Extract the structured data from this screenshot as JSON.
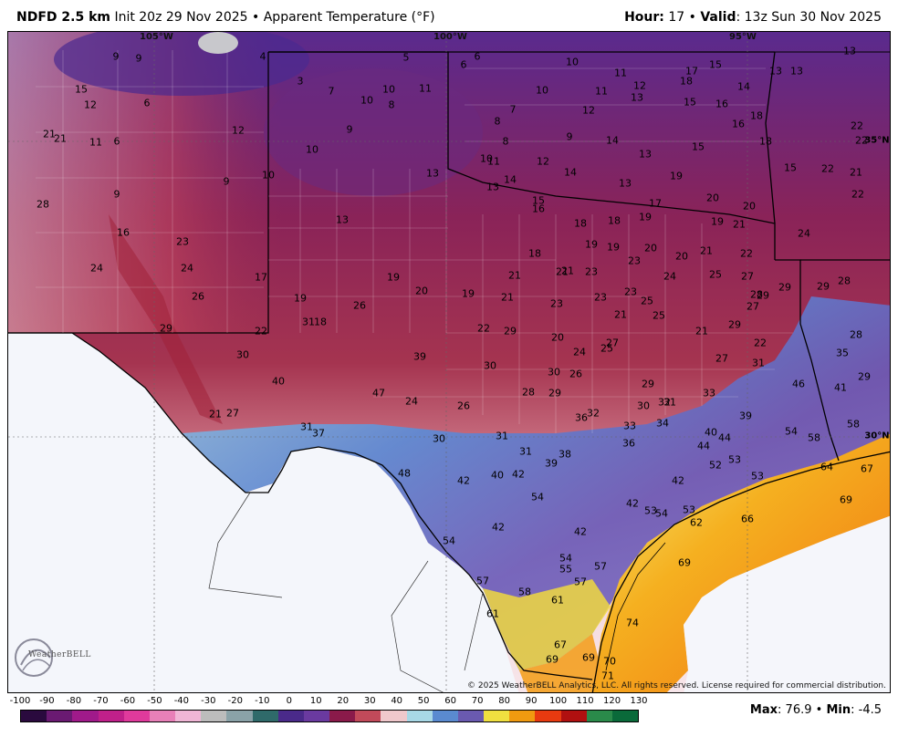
{
  "header": {
    "model": "NDFD 2.5 km",
    "init": "Init 20z 29 Nov 2025",
    "sep": "•",
    "product": "Apparent Temperature (°F)",
    "hour_label": "Hour:",
    "hour_value": "17",
    "valid_label": "Valid",
    "valid_value": ": 13z Sun 30 Nov 2025"
  },
  "map": {
    "meridians": [
      "105°W",
      "100°W",
      "95°W"
    ],
    "parallels": [
      "35°N",
      "30°N"
    ],
    "copyright": "© 2025 WeatherBELL Analytics, LLC. All rights reserved. License required for commercial distribution.",
    "logo_text": "WeatherBELL",
    "values": [
      {
        "v": "9"
      },
      {
        "v": "9"
      },
      {
        "v": "4"
      },
      {
        "v": "5"
      },
      {
        "v": "6"
      },
      {
        "v": "6"
      },
      {
        "v": "10"
      },
      {
        "v": "13"
      },
      {
        "v": "15"
      },
      {
        "v": "12"
      },
      {
        "v": "6"
      },
      {
        "v": "3"
      },
      {
        "v": "7"
      },
      {
        "v": "10"
      },
      {
        "v": "10"
      },
      {
        "v": "11"
      },
      {
        "v": "8"
      },
      {
        "v": "11"
      },
      {
        "v": "12"
      },
      {
        "v": "17"
      },
      {
        "v": "15"
      },
      {
        "v": "13"
      },
      {
        "v": "13"
      },
      {
        "v": "18"
      },
      {
        "v": "14"
      },
      {
        "v": "21"
      },
      {
        "v": "21"
      },
      {
        "v": "11"
      },
      {
        "v": "6"
      },
      {
        "v": "12"
      },
      {
        "v": "9"
      },
      {
        "v": "10"
      },
      {
        "v": "7"
      },
      {
        "v": "8"
      },
      {
        "v": "11"
      },
      {
        "v": "13"
      },
      {
        "v": "12"
      },
      {
        "v": "15"
      },
      {
        "v": "16"
      },
      {
        "v": "18"
      },
      {
        "v": "16"
      },
      {
        "v": "22"
      },
      {
        "v": "22"
      },
      {
        "v": "10"
      },
      {
        "v": "8"
      },
      {
        "v": "9"
      },
      {
        "v": "14"
      },
      {
        "v": "13"
      },
      {
        "v": "15"
      },
      {
        "v": "18"
      },
      {
        "v": "35°N"
      },
      {
        "v": "10"
      },
      {
        "v": "11"
      },
      {
        "v": "12"
      },
      {
        "v": "14"
      },
      {
        "v": "13"
      },
      {
        "v": "19"
      },
      {
        "v": "15"
      },
      {
        "v": "22"
      },
      {
        "v": "21"
      },
      {
        "v": "28"
      },
      {
        "v": "9"
      },
      {
        "v": "9"
      },
      {
        "v": "10"
      },
      {
        "v": "13"
      },
      {
        "v": "14"
      },
      {
        "v": "13"
      },
      {
        "v": "15"
      },
      {
        "v": "17"
      },
      {
        "v": "20"
      },
      {
        "v": "20"
      },
      {
        "v": "22"
      },
      {
        "v": "13"
      },
      {
        "v": "16"
      },
      {
        "v": "18"
      },
      {
        "v": "18"
      },
      {
        "v": "19"
      },
      {
        "v": "19"
      },
      {
        "v": "21"
      },
      {
        "v": "24"
      },
      {
        "v": "16"
      },
      {
        "v": "23"
      },
      {
        "v": "19"
      },
      {
        "v": "19"
      },
      {
        "v": "20"
      },
      {
        "v": "20"
      },
      {
        "v": "21"
      },
      {
        "v": "22"
      },
      {
        "v": "24"
      },
      {
        "v": "24"
      },
      {
        "v": "18"
      },
      {
        "v": "21"
      },
      {
        "v": "23"
      },
      {
        "v": "17"
      },
      {
        "v": "21"
      },
      {
        "v": "21"
      },
      {
        "v": "23"
      },
      {
        "v": "24"
      },
      {
        "v": "25"
      },
      {
        "v": "27"
      },
      {
        "v": "29"
      },
      {
        "v": "29"
      },
      {
        "v": "28"
      },
      {
        "v": "29"
      },
      {
        "v": "26"
      },
      {
        "v": "19"
      },
      {
        "v": "19"
      },
      {
        "v": "20"
      },
      {
        "v": "19"
      },
      {
        "v": "21"
      },
      {
        "v": "23"
      },
      {
        "v": "23"
      },
      {
        "v": "23"
      },
      {
        "v": "25"
      },
      {
        "v": "28"
      },
      {
        "v": "29"
      },
      {
        "v": "26"
      },
      {
        "v": "21"
      },
      {
        "v": "25"
      },
      {
        "v": "27"
      },
      {
        "v": "29"
      },
      {
        "v": "31"
      },
      {
        "v": "18"
      },
      {
        "v": "22"
      },
      {
        "v": "22"
      },
      {
        "v": "29"
      },
      {
        "v": "20"
      },
      {
        "v": "21"
      },
      {
        "v": "22"
      },
      {
        "v": "28"
      },
      {
        "v": "30"
      },
      {
        "v": "39"
      },
      {
        "v": "30"
      },
      {
        "v": "24"
      },
      {
        "v": "25"
      },
      {
        "v": "27"
      },
      {
        "v": "27"
      },
      {
        "v": "31"
      },
      {
        "v": "35"
      },
      {
        "v": "40"
      },
      {
        "v": "30"
      },
      {
        "v": "26"
      },
      {
        "v": "29"
      },
      {
        "v": "46"
      },
      {
        "v": "41"
      },
      {
        "v": "47"
      },
      {
        "v": "24"
      },
      {
        "v": "26"
      },
      {
        "v": "28"
      },
      {
        "v": "29"
      },
      {
        "v": "29"
      },
      {
        "v": "31"
      },
      {
        "v": "33"
      },
      {
        "v": "21"
      },
      {
        "v": "27"
      },
      {
        "v": "36"
      },
      {
        "v": "32"
      },
      {
        "v": "30"
      },
      {
        "v": "32"
      },
      {
        "v": "39"
      },
      {
        "v": "31"
      },
      {
        "v": "37"
      },
      {
        "v": "33"
      },
      {
        "v": "34"
      },
      {
        "v": "40"
      },
      {
        "v": "44"
      },
      {
        "v": "54"
      },
      {
        "v": "58"
      },
      {
        "v": "58"
      },
      {
        "v": "30"
      },
      {
        "v": "31"
      },
      {
        "v": "36"
      },
      {
        "v": "44"
      },
      {
        "v": "30°N"
      },
      {
        "v": "31"
      },
      {
        "v": "38"
      },
      {
        "v": "53"
      },
      {
        "v": "39"
      },
      {
        "v": "52"
      },
      {
        "v": "53"
      },
      {
        "v": "64"
      },
      {
        "v": "67"
      },
      {
        "v": "48"
      },
      {
        "v": "40"
      },
      {
        "v": "42"
      },
      {
        "v": "42"
      },
      {
        "v": "42"
      },
      {
        "v": "54"
      },
      {
        "v": "69"
      },
      {
        "v": "42"
      },
      {
        "v": "42"
      },
      {
        "v": "53"
      },
      {
        "v": "54"
      },
      {
        "v": "53"
      },
      {
        "v": "62"
      },
      {
        "v": "66"
      },
      {
        "v": "42"
      },
      {
        "v": "54"
      },
      {
        "v": "54"
      },
      {
        "v": "57"
      },
      {
        "v": "55"
      },
      {
        "v": "69"
      },
      {
        "v": "57"
      },
      {
        "v": "57"
      },
      {
        "v": "58"
      },
      {
        "v": "61"
      },
      {
        "v": "61"
      },
      {
        "v": "74"
      },
      {
        "v": "67"
      },
      {
        "v": "69"
      },
      {
        "v": "69"
      },
      {
        "v": "70"
      },
      {
        "v": "71"
      }
    ]
  },
  "colorbar": {
    "ticks": [
      "-100",
      "-90",
      "-80",
      "-70",
      "-60",
      "-50",
      "-40",
      "-30",
      "-20",
      "-10",
      "0",
      "10",
      "20",
      "30",
      "40",
      "50",
      "60",
      "70",
      "80",
      "90",
      "100",
      "110",
      "120",
      "130"
    ],
    "colors": [
      "#2a0a3e",
      "#6a1a72",
      "#a01a8a",
      "#c0208a",
      "#e03a9c",
      "#e880b8",
      "#f0b6d6",
      "#bcbcbc",
      "#8aa2a8",
      "#2f6a6a",
      "#4a2a8a",
      "#6a3aa0",
      "#8a1a4a",
      "#c24a5a",
      "#f0c8cc",
      "#a8d8e6",
      "#5a8ad0",
      "#6a5ab0",
      "#f0e040",
      "#f09a10",
      "#e83a10",
      "#b01010",
      "#2a8a4a",
      "#0a6a3a"
    ],
    "max_label": "Max",
    "max_value": ": 76.9",
    "sep": "•",
    "min_label": "Min",
    "min_value": ": -4.5"
  }
}
